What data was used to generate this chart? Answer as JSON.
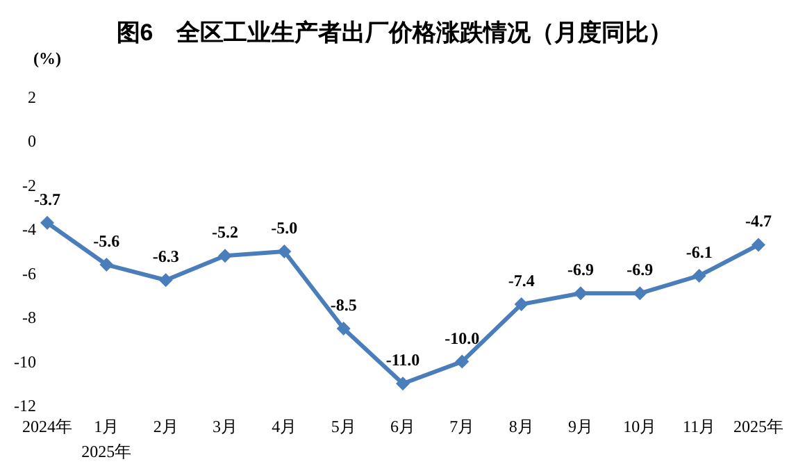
{
  "chart_data": {
    "type": "line",
    "title": "图6　全区工业生产者出厂价格涨跌情况（月度同比）",
    "ylabel": "(%)",
    "categories": [
      "2024年",
      "1月\n2025年",
      "2月",
      "3月",
      "4月",
      "5月",
      "6月",
      "7月",
      "8月",
      "9月",
      "10月",
      "11月",
      "2025年"
    ],
    "series": [
      {
        "color": "#4a7ebb",
        "values": [
          -3.7,
          -5.6,
          -6.3,
          -5.2,
          -5.0,
          -8.5,
          -11.0,
          -10.0,
          -7.4,
          -6.9,
          -6.9,
          -6.1,
          -4.7
        ],
        "value_labels": [
          "-3.7",
          "-5.6",
          "-6.3",
          "-5.2",
          "-5.0",
          "-8.5",
          "-11.0",
          "-10.0",
          "-7.4",
          "-6.9",
          "-6.9",
          "-6.1",
          "-4.7"
        ]
      }
    ],
    "ylim": [
      -12,
      2
    ],
    "yticks": [
      -12,
      -10,
      -8,
      -6,
      -4,
      -2,
      0,
      2
    ],
    "grid": false,
    "marker": "diamond",
    "line_style": "solid"
  }
}
